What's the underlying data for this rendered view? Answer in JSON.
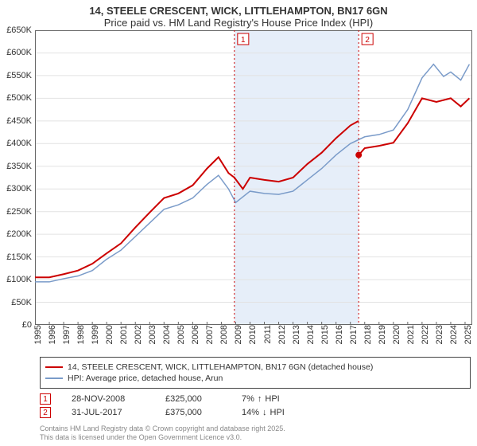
{
  "title_line1": "14, STEELE CRESCENT, WICK, LITTLEHAMPTON, BN17 6GN",
  "title_line2": "Price paid vs. HM Land Registry's House Price Index (HPI)",
  "chart": {
    "type": "line",
    "background_color": "#ffffff",
    "highlight_band_color": "#e6eef9",
    "grid_color": "#e2e2e2",
    "axis_color": "#666666",
    "x_range": [
      1995,
      2025.5
    ],
    "y_range": [
      0,
      650
    ],
    "x_ticks": [
      1995,
      1996,
      1997,
      1998,
      1999,
      2000,
      2001,
      2002,
      2003,
      2004,
      2005,
      2006,
      2007,
      2008,
      2009,
      2010,
      2011,
      2012,
      2013,
      2014,
      2015,
      2016,
      2017,
      2018,
      2019,
      2020,
      2021,
      2022,
      2023,
      2024,
      2025
    ],
    "y_ticks": [
      0,
      50,
      100,
      150,
      200,
      250,
      300,
      350,
      400,
      450,
      500,
      550,
      600,
      650
    ],
    "y_tick_prefix": "£",
    "y_tick_suffix": "K",
    "highlight_band": [
      2008.9,
      2017.58
    ],
    "series": [
      {
        "id": "hpi",
        "label": "HPI: Average price, detached house, Arun",
        "color": "#7a9bc9",
        "line_width": 1.5,
        "points": [
          [
            1995,
            95
          ],
          [
            1996,
            95
          ],
          [
            1997,
            102
          ],
          [
            1998,
            108
          ],
          [
            1999,
            120
          ],
          [
            2000,
            145
          ],
          [
            2001,
            165
          ],
          [
            2002,
            195
          ],
          [
            2003,
            225
          ],
          [
            2004,
            255
          ],
          [
            2005,
            265
          ],
          [
            2006,
            280
          ],
          [
            2007,
            310
          ],
          [
            2007.8,
            330
          ],
          [
            2008.5,
            300
          ],
          [
            2009,
            270
          ],
          [
            2010,
            295
          ],
          [
            2011,
            290
          ],
          [
            2012,
            288
          ],
          [
            2013,
            295
          ],
          [
            2014,
            320
          ],
          [
            2015,
            345
          ],
          [
            2016,
            375
          ],
          [
            2017,
            400
          ],
          [
            2018,
            415
          ],
          [
            2019,
            420
          ],
          [
            2020,
            430
          ],
          [
            2021,
            475
          ],
          [
            2022,
            545
          ],
          [
            2022.8,
            575
          ],
          [
            2023.5,
            548
          ],
          [
            2024,
            558
          ],
          [
            2024.7,
            540
          ],
          [
            2025.3,
            575
          ]
        ]
      },
      {
        "id": "property",
        "label": "14, STEELE CRESCENT, WICK, LITTLEHAMPTON, BN17 6GN (detached house)",
        "color": "#cc0000",
        "line_width": 2,
        "points": [
          [
            1995,
            105
          ],
          [
            1996,
            105
          ],
          [
            1997,
            112
          ],
          [
            1998,
            120
          ],
          [
            1999,
            135
          ],
          [
            2000,
            158
          ],
          [
            2001,
            180
          ],
          [
            2002,
            215
          ],
          [
            2003,
            248
          ],
          [
            2004,
            280
          ],
          [
            2005,
            290
          ],
          [
            2006,
            308
          ],
          [
            2007,
            345
          ],
          [
            2007.8,
            370
          ],
          [
            2008.5,
            335
          ],
          [
            2008.91,
            325
          ],
          [
            2009.5,
            300
          ],
          [
            2010,
            325
          ],
          [
            2011,
            320
          ],
          [
            2012,
            316
          ],
          [
            2013,
            325
          ],
          [
            2014,
            355
          ],
          [
            2015,
            380
          ],
          [
            2016,
            412
          ],
          [
            2017,
            440
          ],
          [
            2017.57,
            450
          ]
        ]
      },
      {
        "id": "property_after",
        "label": "",
        "color": "#cc0000",
        "line_width": 2,
        "points": [
          [
            2017.59,
            375
          ],
          [
            2018,
            390
          ],
          [
            2019,
            395
          ],
          [
            2020,
            402
          ],
          [
            2021,
            445
          ],
          [
            2022,
            500
          ],
          [
            2023,
            492
          ],
          [
            2024,
            500
          ],
          [
            2024.7,
            482
          ],
          [
            2025.3,
            500
          ]
        ]
      }
    ],
    "sale_markers": [
      {
        "index": 1,
        "year": 2008.91,
        "color": "#cc0000",
        "font_size": 10
      },
      {
        "index": 2,
        "year": 2017.58,
        "color": "#cc0000",
        "font_size": 10
      }
    ],
    "end_dot": {
      "year": 2017.58,
      "value": 375,
      "color": "#cc0000",
      "radius": 4
    }
  },
  "legend": [
    {
      "color": "#cc0000",
      "width": 2,
      "label": "14, STEELE CRESCENT, WICK, LITTLEHAMPTON, BN17 6GN (detached house)"
    },
    {
      "color": "#7a9bc9",
      "width": 2,
      "label": "HPI: Average price, detached house, Arun"
    }
  ],
  "sales": [
    {
      "index": 1,
      "marker_color": "#cc0000",
      "date": "28-NOV-2008",
      "price": "£325,000",
      "diff_pct": "7%",
      "diff_arrow": "↑",
      "diff_label": "HPI"
    },
    {
      "index": 2,
      "marker_color": "#cc0000",
      "date": "31-JUL-2017",
      "price": "£375,000",
      "diff_pct": "14%",
      "diff_arrow": "↓",
      "diff_label": "HPI"
    }
  ],
  "footer_line1": "Contains HM Land Registry data © Crown copyright and database right 2025.",
  "footer_line2": "This data is licensed under the Open Government Licence v3.0."
}
